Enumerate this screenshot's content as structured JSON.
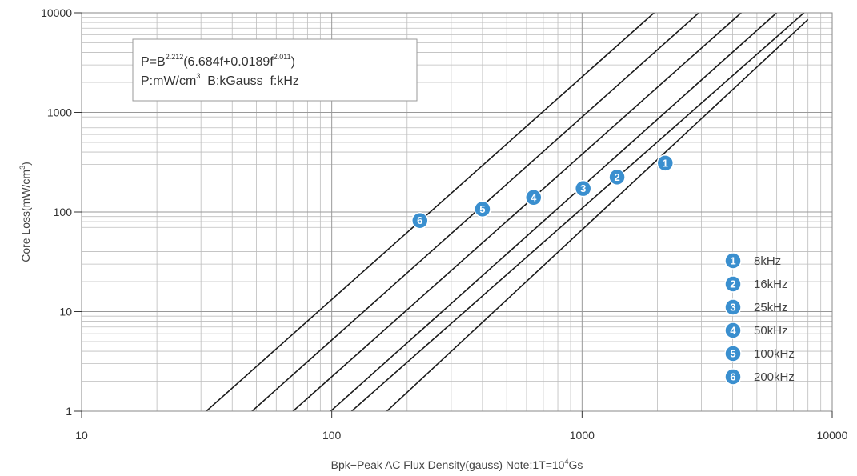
{
  "chart_data": {
    "type": "line",
    "xscale": "log",
    "yscale": "log",
    "xlim": [
      10,
      10000
    ],
    "ylim": [
      1,
      10000
    ],
    "x_ticks": [
      "10",
      "100",
      "1000",
      "10000"
    ],
    "y_ticks": [
      "1",
      "10",
      "100",
      "1000",
      "10000"
    ],
    "xlabel": "Bpk−Peak AC Flux Density(gauss) Note:1T=10",
    "xlabel_sup": "4",
    "xlabel_tail": "Gs",
    "ylabel": "Core Loss(mW/cm",
    "ylabel_sup": "3",
    "ylabel_tail": ")",
    "grid": true,
    "formula": {
      "line1_a": "P=B",
      "line1_sup1": "2.212",
      "line1_b": "(6.684f+0.0189f",
      "line1_sup2": "2.011",
      "line1_c": ")",
      "line2_a": "P:mW/cm",
      "line2_sup": "3",
      "line2_b": "  B:kGauss  f:kHz"
    },
    "series": [
      {
        "name": "8kHz",
        "marker": "1",
        "x": [
          166,
          8000
        ],
        "y": [
          1,
          8550
        ],
        "marker_at": [
          2150,
          310
        ]
      },
      {
        "name": "16kHz",
        "marker": "2",
        "x": [
          120,
          7950
        ],
        "y": [
          1,
          10700
        ],
        "marker_at": [
          1380,
          224
        ]
      },
      {
        "name": "25kHz",
        "marker": "3",
        "x": [
          99,
          6180
        ],
        "y": [
          1,
          10700
        ],
        "marker_at": [
          1010,
          172
        ]
      },
      {
        "name": "50kHz",
        "marker": "4",
        "x": [
          70,
          4460
        ],
        "y": [
          1,
          10700
        ],
        "marker_at": [
          640,
          140
        ]
      },
      {
        "name": "100kHz",
        "marker": "5",
        "x": [
          48,
          3020
        ],
        "y": [
          1,
          10700
        ],
        "marker_at": [
          400,
          107
        ]
      },
      {
        "name": "200kHz",
        "marker": "6",
        "x": [
          31.5,
          2000
        ],
        "y": [
          1,
          10700
        ],
        "marker_at": [
          225,
          82
        ]
      }
    ],
    "legend": {
      "placement": "bottom-right",
      "items": [
        {
          "marker": "1",
          "label": "8kHz"
        },
        {
          "marker": "2",
          "label": "16kHz"
        },
        {
          "marker": "3",
          "label": "25kHz"
        },
        {
          "marker": "4",
          "label": "50kHz"
        },
        {
          "marker": "5",
          "label": "100kHz"
        },
        {
          "marker": "6",
          "label": "200kHz"
        }
      ]
    },
    "colors": {
      "line": "#1a1a1a",
      "grid": "#bdbdbd",
      "marker": "#3a8fcf"
    }
  }
}
